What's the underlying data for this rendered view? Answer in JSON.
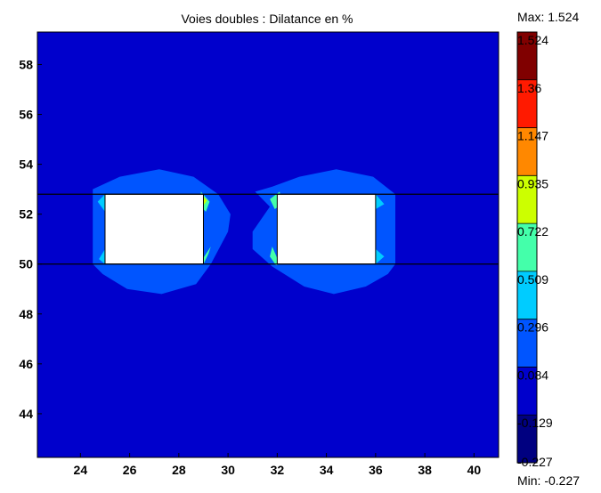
{
  "chart_data": {
    "type": "heatmap",
    "title": "Voies doubles : Dilatance en %",
    "xlabel": "",
    "ylabel": "",
    "xlim": [
      22.25,
      41.0
    ],
    "ylim": [
      42.25,
      59.3
    ],
    "x_ticks": [
      24,
      26,
      28,
      30,
      32,
      34,
      36,
      38,
      40
    ],
    "y_ticks": [
      44,
      46,
      48,
      50,
      52,
      54,
      56,
      58
    ],
    "grid": false,
    "background_value": 0.0,
    "boundary_lines_y": [
      50.0,
      52.8
    ],
    "openings": [
      {
        "x": [
          25.0,
          29.0
        ],
        "y": [
          50.0,
          52.8
        ]
      },
      {
        "x": [
          32.0,
          36.0
        ],
        "y": [
          50.0,
          52.8
        ]
      }
    ],
    "zones": [
      {
        "range": [
          0.084,
          0.296
        ],
        "color": "#0055ff",
        "points": [
          [
            24.5,
            53.0
          ],
          [
            25.6,
            53.5
          ],
          [
            27.2,
            53.8
          ],
          [
            28.6,
            53.5
          ],
          [
            29.6,
            52.8
          ],
          [
            30.1,
            52.0
          ],
          [
            30.0,
            51.3
          ],
          [
            29.3,
            50.0
          ],
          [
            28.7,
            49.2
          ],
          [
            27.3,
            48.8
          ],
          [
            25.9,
            49.0
          ],
          [
            24.9,
            49.6
          ],
          [
            24.5,
            50.0
          ]
        ]
      },
      {
        "range": [
          0.084,
          0.296
        ],
        "color": "#0055ff",
        "points": [
          [
            31.1,
            52.9
          ],
          [
            31.7,
            52.3
          ],
          [
            31.0,
            51.3
          ],
          [
            31.0,
            50.6
          ],
          [
            31.8,
            49.9
          ],
          [
            33.1,
            49.1
          ],
          [
            34.3,
            48.8
          ],
          [
            35.6,
            49.1
          ],
          [
            36.5,
            49.6
          ],
          [
            36.8,
            50.0
          ],
          [
            36.8,
            52.8
          ],
          [
            35.9,
            53.5
          ],
          [
            34.4,
            53.8
          ],
          [
            32.9,
            53.5
          ],
          [
            31.8,
            53.1
          ]
        ]
      },
      {
        "range": [
          0.509,
          0.722
        ],
        "color": "#44ffaa",
        "points": [
          [
            28.9,
            52.9
          ],
          [
            29.25,
            52.5
          ],
          [
            29.1,
            52.1
          ],
          [
            28.9,
            52.3
          ]
        ]
      },
      {
        "range": [
          0.722,
          0.935
        ],
        "color": "#ccff00",
        "points": [
          [
            28.95,
            52.75
          ],
          [
            29.15,
            52.55
          ],
          [
            29.0,
            52.35
          ]
        ]
      },
      {
        "range": [
          0.509,
          0.722
        ],
        "color": "#44ffaa",
        "points": [
          [
            28.9,
            50.1
          ],
          [
            29.3,
            50.7
          ],
          [
            29.2,
            50.4
          ],
          [
            29.0,
            50.0
          ]
        ]
      },
      {
        "range": [
          0.509,
          0.722
        ],
        "color": "#44ffaa",
        "points": [
          [
            31.7,
            52.6
          ],
          [
            32.1,
            52.9
          ],
          [
            32.2,
            52.4
          ],
          [
            31.9,
            52.2
          ]
        ]
      },
      {
        "range": [
          0.509,
          0.722
        ],
        "color": "#44ffaa",
        "points": [
          [
            31.8,
            50.7
          ],
          [
            32.1,
            50.0
          ],
          [
            31.95,
            49.95
          ],
          [
            31.7,
            50.3
          ]
        ]
      },
      {
        "range": [
          0.296,
          0.509
        ],
        "color": "#00ccff",
        "points": [
          [
            24.7,
            52.5
          ],
          [
            25.0,
            52.8
          ],
          [
            25.0,
            52.1
          ]
        ]
      },
      {
        "range": [
          0.296,
          0.509
        ],
        "color": "#00ccff",
        "points": [
          [
            24.75,
            50.2
          ],
          [
            25.0,
            50.0
          ],
          [
            25.0,
            50.6
          ]
        ]
      },
      {
        "range": [
          0.296,
          0.509
        ],
        "color": "#00ccff",
        "points": [
          [
            36.0,
            52.8
          ],
          [
            36.35,
            52.4
          ],
          [
            36.0,
            52.2
          ]
        ]
      },
      {
        "range": [
          0.296,
          0.509
        ],
        "color": "#00ccff",
        "points": [
          [
            36.0,
            50.0
          ],
          [
            36.35,
            50.3
          ],
          [
            36.0,
            50.6
          ]
        ]
      }
    ],
    "colorbar": {
      "max_label": "Max: 1.524",
      "min_label": "Min: -0.227",
      "levels": [
        "1.524",
        "1.36",
        "1.147",
        "0.935",
        "0.722",
        "0.509",
        "0.296",
        "0.084",
        "-0.129",
        "-0.227"
      ],
      "colors": [
        "#800000",
        "#ff1a00",
        "#ff8800",
        "#ccff00",
        "#44ffaa",
        "#00ccff",
        "#0055ff",
        "#0000cc",
        "#000080"
      ]
    }
  }
}
